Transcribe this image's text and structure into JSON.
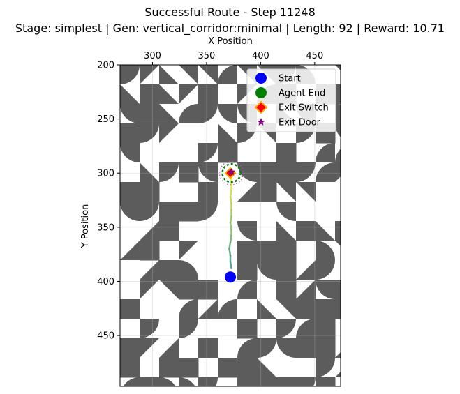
{
  "chart_data": {
    "type": "scatter",
    "title": "Successful Route - Step 11248",
    "subtitle": "Stage: simplest | Gen: vertical_corridor:minimal | Length: 92 | Reward: 10.71",
    "xlabel": "X Position",
    "ylabel": "Y Position",
    "xlim": [
      270,
      474
    ],
    "ylim": [
      497,
      200
    ],
    "y_inverted": true,
    "x_axis_position": "top",
    "x_ticks": [
      300,
      350,
      400,
      450
    ],
    "y_ticks": [
      200,
      250,
      300,
      350,
      400,
      450
    ],
    "grid": true,
    "legend_position": "top-right",
    "legend": [
      {
        "label": "Start",
        "marker": "circle",
        "color": "#0000ff"
      },
      {
        "label": "Agent End",
        "marker": "circle",
        "color": "#008000"
      },
      {
        "label": "Exit Switch",
        "marker": "diamond",
        "color": "#ff0000",
        "edge_color": "#ffa500"
      },
      {
        "label": "Exit Door",
        "marker": "star",
        "color": "#800080"
      }
    ],
    "points": {
      "start": {
        "x": 372,
        "y": 396
      },
      "agent_end": {
        "x": 373,
        "y": 300
      },
      "exit_switch": {
        "x": 372,
        "y": 300
      },
      "exit_door": {
        "x": 373,
        "y": 299
      }
    },
    "trajectory": [
      [
        373,
        388
      ],
      [
        372,
        382
      ],
      [
        372,
        376
      ],
      [
        371,
        370
      ],
      [
        372,
        364
      ],
      [
        373,
        358
      ],
      [
        373,
        352
      ],
      [
        372,
        346
      ],
      [
        373,
        340
      ],
      [
        373,
        334
      ],
      [
        373,
        328
      ],
      [
        372,
        322
      ],
      [
        373,
        316
      ],
      [
        373,
        310
      ],
      [
        373,
        304
      ],
      [
        373,
        300
      ]
    ],
    "tile_color": "#5c5c5c"
  }
}
